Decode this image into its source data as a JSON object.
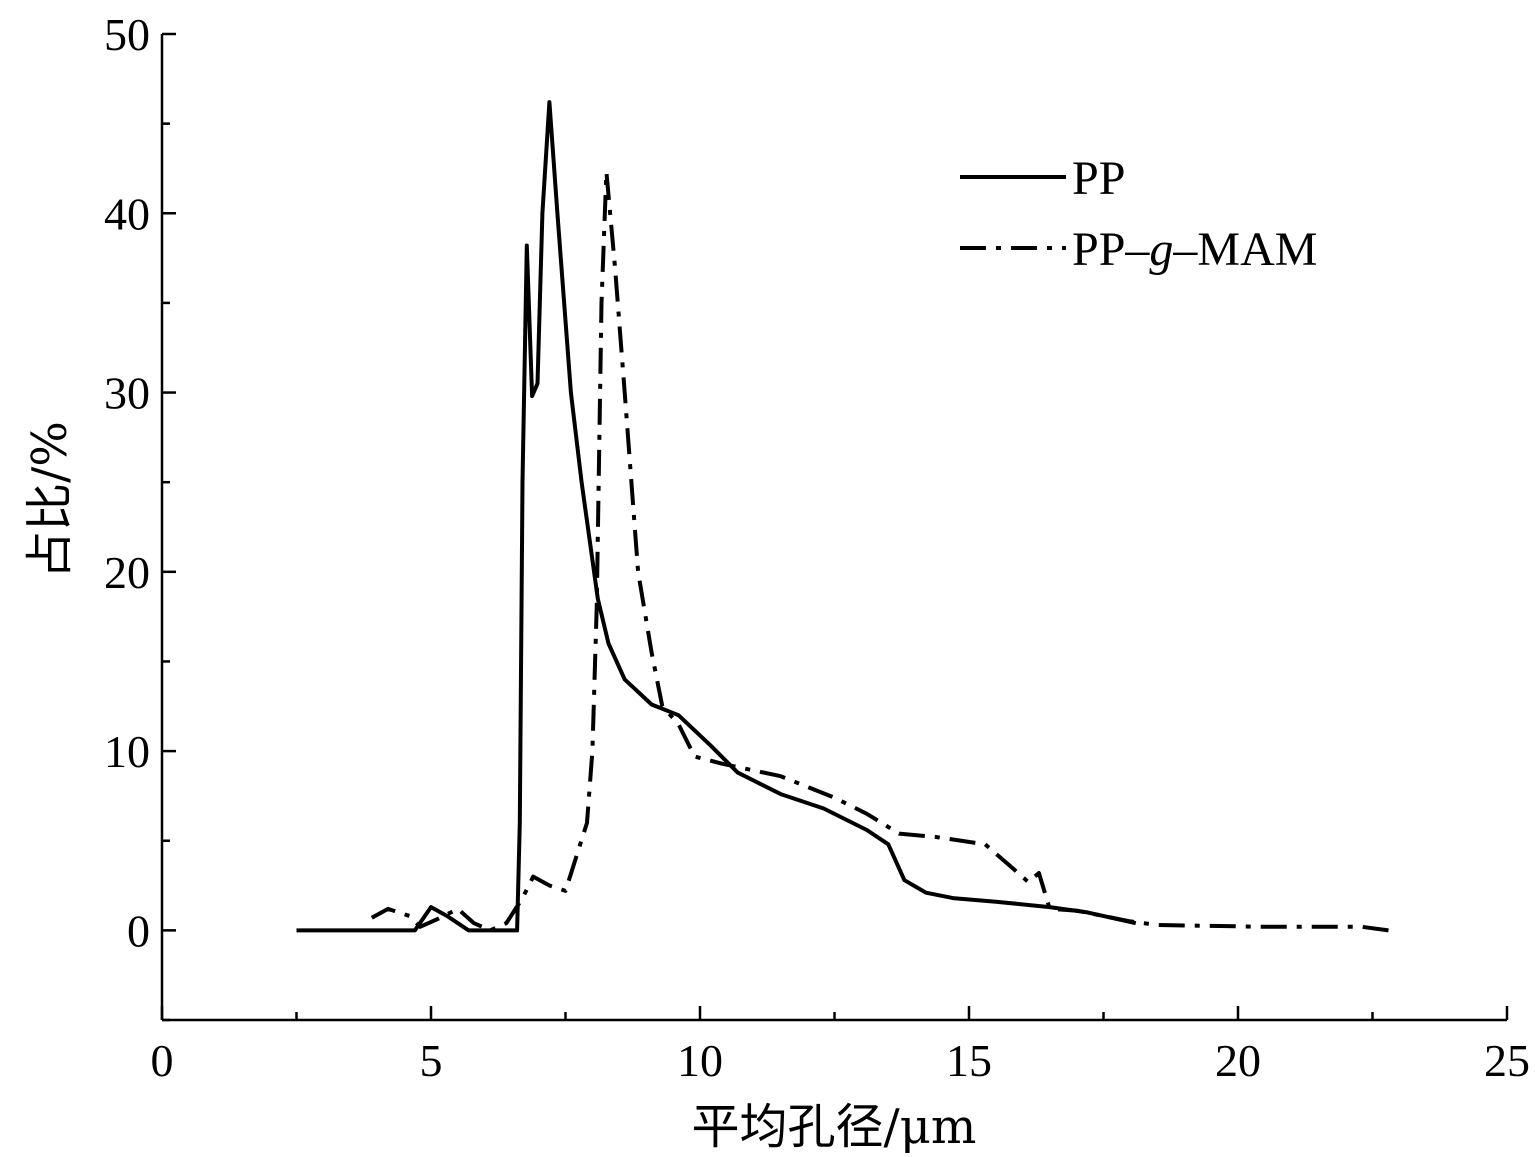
{
  "chart_data": {
    "type": "line",
    "title": "",
    "xlabel": "平均孔径/μm",
    "ylabel": "占比/%",
    "xlim": [
      0,
      25
    ],
    "ylim": [
      -5,
      50
    ],
    "x_ticks": [
      0,
      5,
      10,
      15,
      20,
      25
    ],
    "y_ticks": [
      0,
      10,
      20,
      30,
      40,
      50
    ],
    "x_minor_step": 2.5,
    "y_minor_step": 5,
    "legend_position": "top-right",
    "series": [
      {
        "name": "PP",
        "style": "solid",
        "points": [
          [
            2.5,
            0
          ],
          [
            4.7,
            0
          ],
          [
            5.0,
            1.3
          ],
          [
            5.3,
            0.8
          ],
          [
            5.7,
            0
          ],
          [
            6.6,
            0
          ],
          [
            6.65,
            6
          ],
          [
            6.7,
            25
          ],
          [
            6.78,
            38.2
          ],
          [
            6.88,
            29.8
          ],
          [
            6.98,
            30.5
          ],
          [
            7.07,
            40
          ],
          [
            7.2,
            46.2
          ],
          [
            7.35,
            40
          ],
          [
            7.6,
            30
          ],
          [
            7.8,
            25
          ],
          [
            8.1,
            18.5
          ],
          [
            8.3,
            16
          ],
          [
            8.6,
            14
          ],
          [
            9.1,
            12.6
          ],
          [
            9.6,
            12
          ],
          [
            10.2,
            10.3
          ],
          [
            10.7,
            8.8
          ],
          [
            11.5,
            7.6
          ],
          [
            12.3,
            6.8
          ],
          [
            13.1,
            5.6
          ],
          [
            13.5,
            4.8
          ],
          [
            13.8,
            2.8
          ],
          [
            14.2,
            2.1
          ],
          [
            14.7,
            1.8
          ],
          [
            15.5,
            1.6
          ],
          [
            16.5,
            1.3
          ],
          [
            17.2,
            1.0
          ],
          [
            18.1,
            0.4
          ]
        ]
      },
      {
        "name": "PP-g-MAM",
        "style": "dash-dot",
        "points": [
          [
            3.9,
            0.7
          ],
          [
            4.2,
            1.2
          ],
          [
            4.6,
            0.8
          ],
          [
            4.8,
            0.2
          ],
          [
            5.1,
            0.6
          ],
          [
            5.5,
            1.2
          ],
          [
            5.8,
            0.4
          ],
          [
            6.1,
            0
          ],
          [
            6.4,
            0.4
          ],
          [
            6.7,
            1.8
          ],
          [
            6.9,
            3.0
          ],
          [
            7.2,
            2.5
          ],
          [
            7.5,
            2.2
          ],
          [
            7.9,
            6
          ],
          [
            8.0,
            10
          ],
          [
            8.08,
            18
          ],
          [
            8.17,
            35
          ],
          [
            8.26,
            42.3
          ],
          [
            8.42,
            37
          ],
          [
            8.6,
            30
          ],
          [
            8.85,
            20
          ],
          [
            9.1,
            15.5
          ],
          [
            9.3,
            12.5
          ],
          [
            9.6,
            11.5
          ],
          [
            9.9,
            9.7
          ],
          [
            10.4,
            9.3
          ],
          [
            11.5,
            8.6
          ],
          [
            12.5,
            7.4
          ],
          [
            13.1,
            6.5
          ],
          [
            13.7,
            5.4
          ],
          [
            14.4,
            5.2
          ],
          [
            15.3,
            4.8
          ],
          [
            15.8,
            3.5
          ],
          [
            16.1,
            2.7
          ],
          [
            16.3,
            3.2
          ],
          [
            16.5,
            1.2
          ],
          [
            17.0,
            1.1
          ],
          [
            18.0,
            0.5
          ],
          [
            18.5,
            0.3
          ],
          [
            19.5,
            0.25
          ],
          [
            20.5,
            0.2
          ],
          [
            21.5,
            0.2
          ],
          [
            22.3,
            0.2
          ],
          [
            22.8,
            0.0
          ]
        ]
      }
    ]
  }
}
